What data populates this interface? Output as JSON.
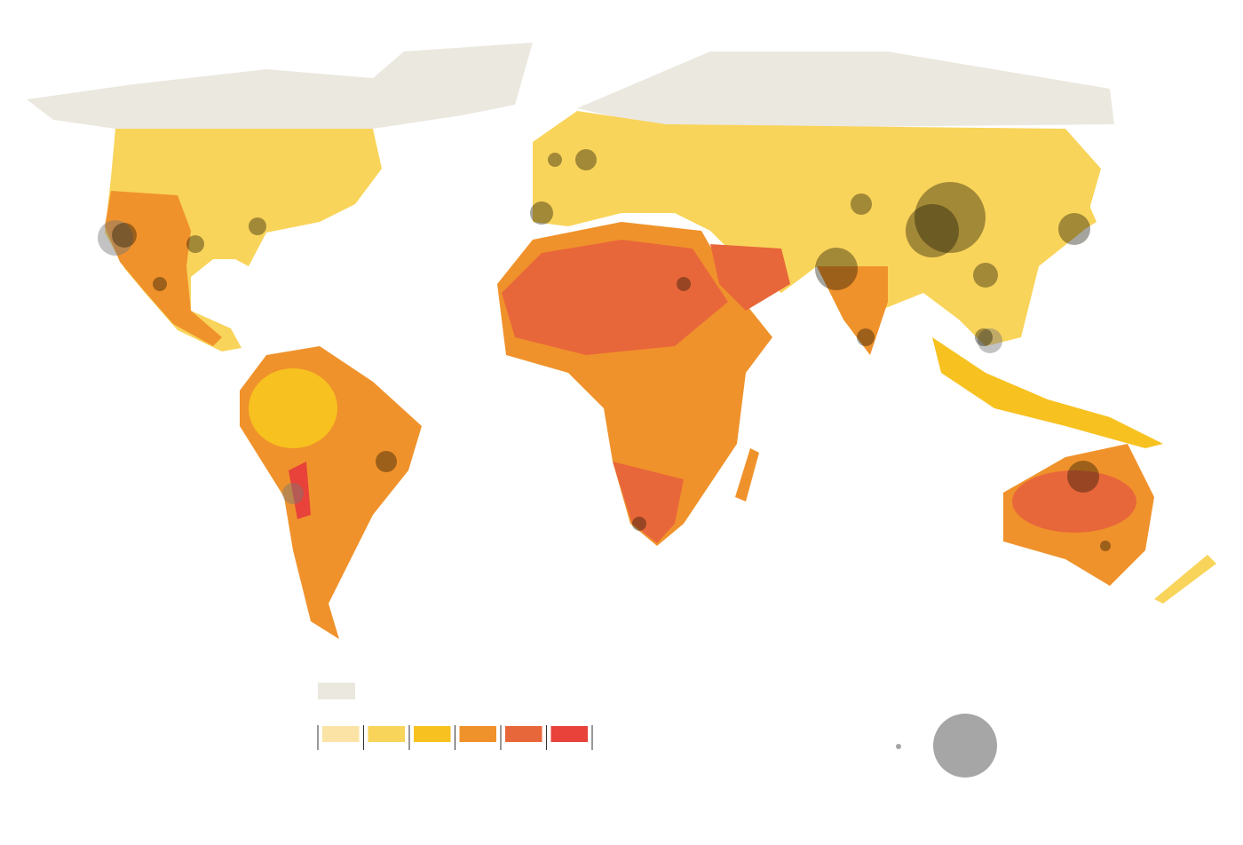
{
  "legend": {
    "no_data_color": "#ebe8df",
    "class_colors": [
      "#fbe3a6",
      "#f9d45a",
      "#f7c11f",
      "#f0922b",
      "#e8673a",
      "#e8423a"
    ],
    "size_color": "#a6a6a6"
  }
}
